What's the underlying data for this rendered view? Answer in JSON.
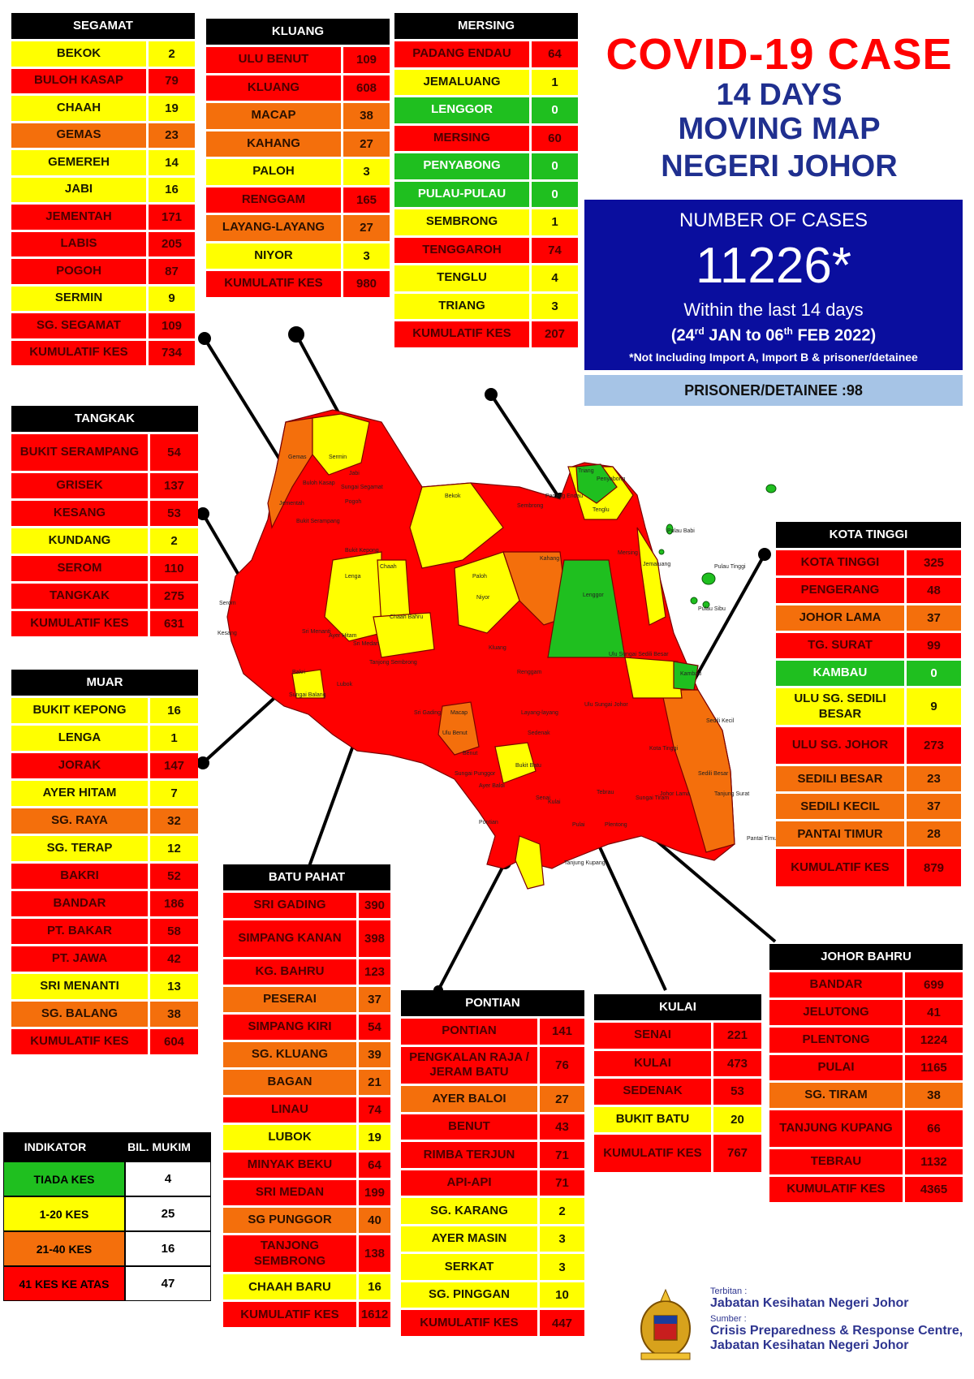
{
  "title": "COVID-19 CASE",
  "subtitle_lines": [
    "14 DAYS",
    "MOVING MAP",
    "NEGERI JOHOR"
  ],
  "summary": {
    "label": "NUMBER OF CASES",
    "total": "11226*",
    "within": "Within the last 14 days",
    "range_open": "(24",
    "range_sup1": "rd",
    "range_mid": " JAN to 06",
    "range_sup2": "th",
    "range_close": " FEB 2022)",
    "note": "*Not Including Import A, Import B & prisoner/detainee"
  },
  "prisoner": "PRISONER/DETAINEE :98",
  "colors": {
    "red": "#ff0000",
    "yellow": "#ffff00",
    "orange": "#f46f0c",
    "green": "#1fbf1f",
    "navy": "#0a0e9e",
    "title_red": "#ff0000",
    "title_blue": "#1f2f8f"
  },
  "districts": {
    "segamat": {
      "name": "SEGAMAT",
      "rows": [
        {
          "n": "BEKOK",
          "v": "2",
          "c": "yellow"
        },
        {
          "n": "BULOH KASAP",
          "v": "79",
          "c": "red"
        },
        {
          "n": "CHAAH",
          "v": "19",
          "c": "yellow"
        },
        {
          "n": "GEMAS",
          "v": "23",
          "c": "orange"
        },
        {
          "n": "GEMEREH",
          "v": "14",
          "c": "yellow"
        },
        {
          "n": "JABI",
          "v": "16",
          "c": "yellow"
        },
        {
          "n": "JEMENTAH",
          "v": "171",
          "c": "red"
        },
        {
          "n": "LABIS",
          "v": "205",
          "c": "red"
        },
        {
          "n": "POGOH",
          "v": "87",
          "c": "red"
        },
        {
          "n": "SERMIN",
          "v": "9",
          "c": "yellow"
        },
        {
          "n": "SG. SEGAMAT",
          "v": "109",
          "c": "red"
        },
        {
          "n": "KUMULATIF KES",
          "v": "734",
          "c": "red"
        }
      ]
    },
    "kluang": {
      "name": "KLUANG",
      "rows": [
        {
          "n": "ULU BENUT",
          "v": "109",
          "c": "red"
        },
        {
          "n": "KLUANG",
          "v": "608",
          "c": "red"
        },
        {
          "n": "MACAP",
          "v": "38",
          "c": "orange"
        },
        {
          "n": "KAHANG",
          "v": "27",
          "c": "orange"
        },
        {
          "n": "PALOH",
          "v": "3",
          "c": "yellow"
        },
        {
          "n": "RENGGAM",
          "v": "165",
          "c": "red"
        },
        {
          "n": "LAYANG-LAYANG",
          "v": "27",
          "c": "orange"
        },
        {
          "n": "NIYOR",
          "v": "3",
          "c": "yellow"
        },
        {
          "n": "KUMULATIF KES",
          "v": "980",
          "c": "red"
        }
      ]
    },
    "mersing": {
      "name": "MERSING",
      "rows": [
        {
          "n": "PADANG ENDAU",
          "v": "64",
          "c": "red"
        },
        {
          "n": "JEMALUANG",
          "v": "1",
          "c": "yellow"
        },
        {
          "n": "LENGGOR",
          "v": "0",
          "c": "green"
        },
        {
          "n": "MERSING",
          "v": "60",
          "c": "red"
        },
        {
          "n": "PENYABONG",
          "v": "0",
          "c": "green"
        },
        {
          "n": "PULAU-PULAU",
          "v": "0",
          "c": "green"
        },
        {
          "n": "SEMBRONG",
          "v": "1",
          "c": "yellow"
        },
        {
          "n": "TENGGAROH",
          "v": "74",
          "c": "red"
        },
        {
          "n": "TENGLU",
          "v": "4",
          "c": "yellow"
        },
        {
          "n": "TRIANG",
          "v": "3",
          "c": "yellow"
        },
        {
          "n": "KUMULATIF KES",
          "v": "207",
          "c": "red"
        }
      ]
    },
    "tangkak": {
      "name": "TANGKAK",
      "rows": [
        {
          "n": "BUKIT SERAMPANG",
          "v": "54",
          "c": "red",
          "tall": true
        },
        {
          "n": "GRISEK",
          "v": "137",
          "c": "red"
        },
        {
          "n": "KESANG",
          "v": "53",
          "c": "red"
        },
        {
          "n": "KUNDANG",
          "v": "2",
          "c": "yellow"
        },
        {
          "n": "SEROM",
          "v": "110",
          "c": "red"
        },
        {
          "n": "TANGKAK",
          "v": "275",
          "c": "red"
        },
        {
          "n": "KUMULATIF KES",
          "v": "631",
          "c": "red"
        }
      ]
    },
    "muar": {
      "name": "MUAR",
      "rows": [
        {
          "n": "BUKIT KEPONG",
          "v": "16",
          "c": "yellow"
        },
        {
          "n": "LENGA",
          "v": "1",
          "c": "yellow"
        },
        {
          "n": "JORAK",
          "v": "147",
          "c": "red"
        },
        {
          "n": "AYER HITAM",
          "v": "7",
          "c": "yellow"
        },
        {
          "n": "SG. RAYA",
          "v": "32",
          "c": "orange"
        },
        {
          "n": "SG. TERAP",
          "v": "12",
          "c": "yellow"
        },
        {
          "n": "BAKRI",
          "v": "52",
          "c": "red"
        },
        {
          "n": "BANDAR",
          "v": "186",
          "c": "red"
        },
        {
          "n": "PT. BAKAR",
          "v": "58",
          "c": "red"
        },
        {
          "n": "PT. JAWA",
          "v": "42",
          "c": "red"
        },
        {
          "n": "SRI MENANTI",
          "v": "13",
          "c": "yellow"
        },
        {
          "n": "SG. BALANG",
          "v": "38",
          "c": "orange"
        },
        {
          "n": "KUMULATIF KES",
          "v": "604",
          "c": "red"
        }
      ]
    },
    "kotatinggi": {
      "name": "KOTA TINGGI",
      "rows": [
        {
          "n": "KOTA TINGGI",
          "v": "325",
          "c": "red"
        },
        {
          "n": "PENGERANG",
          "v": "48",
          "c": "red"
        },
        {
          "n": "JOHOR LAMA",
          "v": "37",
          "c": "orange"
        },
        {
          "n": "TG. SURAT",
          "v": "99",
          "c": "red"
        },
        {
          "n": "KAMBAU",
          "v": "0",
          "c": "green"
        },
        {
          "n": "ULU SG. SEDILI BESAR",
          "v": "9",
          "c": "yellow",
          "tall": true
        },
        {
          "n": "ULU  SG. JOHOR",
          "v": "273",
          "c": "red",
          "tall": true
        },
        {
          "n": "SEDILI BESAR",
          "v": "23",
          "c": "orange"
        },
        {
          "n": "SEDILI KECIL",
          "v": "37",
          "c": "orange"
        },
        {
          "n": "PANTAI TIMUR",
          "v": "28",
          "c": "orange"
        },
        {
          "n": "KUMULATIF KES",
          "v": "879",
          "c": "red",
          "tall": true
        }
      ]
    },
    "batupahat": {
      "name": "BATU PAHAT",
      "rows": [
        {
          "n": "SRI GADING",
          "v": "390",
          "c": "red"
        },
        {
          "n": "SIMPANG KANAN",
          "v": "398",
          "c": "red",
          "tall": true
        },
        {
          "n": "KG. BAHRU",
          "v": "123",
          "c": "red"
        },
        {
          "n": "PESERAI",
          "v": "37",
          "c": "orange"
        },
        {
          "n": "SIMPANG KIRI",
          "v": "54",
          "c": "red"
        },
        {
          "n": "SG. KLUANG",
          "v": "39",
          "c": "orange"
        },
        {
          "n": "BAGAN",
          "v": "21",
          "c": "orange"
        },
        {
          "n": "LINAU",
          "v": "74",
          "c": "red"
        },
        {
          "n": "LUBOK",
          "v": "19",
          "c": "yellow"
        },
        {
          "n": "MINYAK BEKU",
          "v": "64",
          "c": "red"
        },
        {
          "n": "SRI MEDAN",
          "v": "199",
          "c": "red"
        },
        {
          "n": "SG PUNGGOR",
          "v": "40",
          "c": "orange"
        },
        {
          "n": "TANJONG SEMBRONG",
          "v": "138",
          "c": "red",
          "tall": true
        },
        {
          "n": "CHAAH BARU",
          "v": "16",
          "c": "yellow"
        },
        {
          "n": "KUMULATIF KES",
          "v": "1612",
          "c": "red"
        }
      ]
    },
    "pontian": {
      "name": "PONTIAN",
      "rows": [
        {
          "n": "PONTIAN",
          "v": "141",
          "c": "red"
        },
        {
          "n": "PENGKALAN RAJA / JERAM BATU",
          "v": "76",
          "c": "red",
          "tall": true
        },
        {
          "n": "AYER BALOI",
          "v": "27",
          "c": "orange"
        },
        {
          "n": "BENUT",
          "v": "43",
          "c": "red"
        },
        {
          "n": "RIMBA TERJUN",
          "v": "71",
          "c": "red"
        },
        {
          "n": "API-API",
          "v": "71",
          "c": "red"
        },
        {
          "n": "SG. KARANG",
          "v": "2",
          "c": "yellow"
        },
        {
          "n": "AYER MASIN",
          "v": "3",
          "c": "yellow"
        },
        {
          "n": "SERKAT",
          "v": "3",
          "c": "yellow"
        },
        {
          "n": "SG. PINGGAN",
          "v": "10",
          "c": "yellow"
        },
        {
          "n": "KUMULATIF KES",
          "v": "447",
          "c": "red"
        }
      ]
    },
    "kulai": {
      "name": "KULAI",
      "rows": [
        {
          "n": "SENAI",
          "v": "221",
          "c": "red"
        },
        {
          "n": "KULAI",
          "v": "473",
          "c": "red"
        },
        {
          "n": "SEDENAK",
          "v": "53",
          "c": "red"
        },
        {
          "n": "BUKIT BATU",
          "v": "20",
          "c": "yellow"
        },
        {
          "n": "KUMULATIF KES",
          "v": "767",
          "c": "red",
          "tall": true
        }
      ]
    },
    "johorbahru": {
      "name": "JOHOR BAHRU",
      "rows": [
        {
          "n": "BANDAR",
          "v": "699",
          "c": "red"
        },
        {
          "n": "JELUTONG",
          "v": "41",
          "c": "red"
        },
        {
          "n": "PLENTONG",
          "v": "1224",
          "c": "red"
        },
        {
          "n": "PULAI",
          "v": "1165",
          "c": "red"
        },
        {
          "n": "SG. TIRAM",
          "v": "38",
          "c": "orange"
        },
        {
          "n": "TANJUNG KUPANG",
          "v": "66",
          "c": "red",
          "tall": true
        },
        {
          "n": "TEBRAU",
          "v": "1132",
          "c": "red"
        },
        {
          "n": "KUMULATIF KES",
          "v": "4365",
          "c": "red"
        }
      ]
    }
  },
  "legend": {
    "headers": [
      "INDIKATOR",
      "BIL. MUKIM"
    ],
    "rows": [
      {
        "label": "TIADA KES",
        "count": "4",
        "c": "green"
      },
      {
        "label": "1-20 KES",
        "count": "25",
        "c": "yellow"
      },
      {
        "label": "21-40 KES",
        "count": "16",
        "c": "orange"
      },
      {
        "label": "41 KES KE ATAS",
        "count": "47",
        "c": "red"
      }
    ]
  },
  "map_labels": [
    {
      "t": "Gemas"
    },
    {
      "t": "Sermin"
    },
    {
      "t": "Jabi"
    },
    {
      "t": "Buloh Kasap"
    },
    {
      "t": "Sungai Segamat"
    },
    {
      "t": "Jementah"
    },
    {
      "t": "Pogoh"
    },
    {
      "t": "Bekok"
    },
    {
      "t": "Bukit Serampang"
    },
    {
      "t": "Bukit Kepong"
    },
    {
      "t": "Lenga"
    },
    {
      "t": "Chaah"
    },
    {
      "t": "Chaah Bahru"
    },
    {
      "t": "Paloh"
    },
    {
      "t": "Niyor"
    },
    {
      "t": "Kluang"
    },
    {
      "t": "Renggam"
    },
    {
      "t": "Kahang"
    },
    {
      "t": "Lenggor"
    },
    {
      "t": "Mersing"
    },
    {
      "t": "Jemaluang"
    },
    {
      "t": "Sembrong"
    },
    {
      "t": "Tenglu"
    },
    {
      "t": "Triang"
    },
    {
      "t": "Padang Endau"
    },
    {
      "t": "Penyabong"
    },
    {
      "t": "Pulau Babi"
    },
    {
      "t": "Pulau Tinggi"
    },
    {
      "t": "Pulau Sibu"
    },
    {
      "t": "Kesang"
    },
    {
      "t": "Serom"
    },
    {
      "t": "Ayer Hitam"
    },
    {
      "t": "Sri Medan"
    },
    {
      "t": "Tanjong Sembrong"
    },
    {
      "t": "Sri Gading"
    },
    {
      "t": "Macap"
    },
    {
      "t": "Layang-layang"
    },
    {
      "t": "Sedenak"
    },
    {
      "t": "Ulu Sungai Sedili Besar"
    },
    {
      "t": "Kambau"
    },
    {
      "t": "Ulu Sungai Johor"
    },
    {
      "t": "Kota Tinggi"
    },
    {
      "t": "Sedili Kecil"
    },
    {
      "t": "Johor Lama"
    },
    {
      "t": "Tanjung Surat"
    },
    {
      "t": "Benut"
    },
    {
      "t": "Bukit Batu"
    },
    {
      "t": "Sungai Punggor"
    },
    {
      "t": "Ayer Baloi"
    },
    {
      "t": "Pontian"
    },
    {
      "t": "Senai"
    },
    {
      "t": "Kulai"
    },
    {
      "t": "Tebrau"
    },
    {
      "t": "Pulai"
    },
    {
      "t": "Plentong"
    },
    {
      "t": "Pantai Timur"
    },
    {
      "t": "Sungai Tiram"
    },
    {
      "t": "Tanjung Kupang"
    },
    {
      "t": "Bakri"
    },
    {
      "t": "Sri Menanti"
    },
    {
      "t": "Sungai Balang"
    },
    {
      "t": "Lubok"
    },
    {
      "t": "Ulu Benut"
    },
    {
      "t": "Sedili Besar"
    }
  ],
  "credits": {
    "published_by_label": "Terbitan :",
    "publisher": "Jabatan Kesihatan Negeri Johor",
    "source_label": "Sumber :",
    "source_line1": "Crisis Preparedness & Response Centre,",
    "source_line2": "Jabatan Kesihatan Negeri Johor"
  }
}
